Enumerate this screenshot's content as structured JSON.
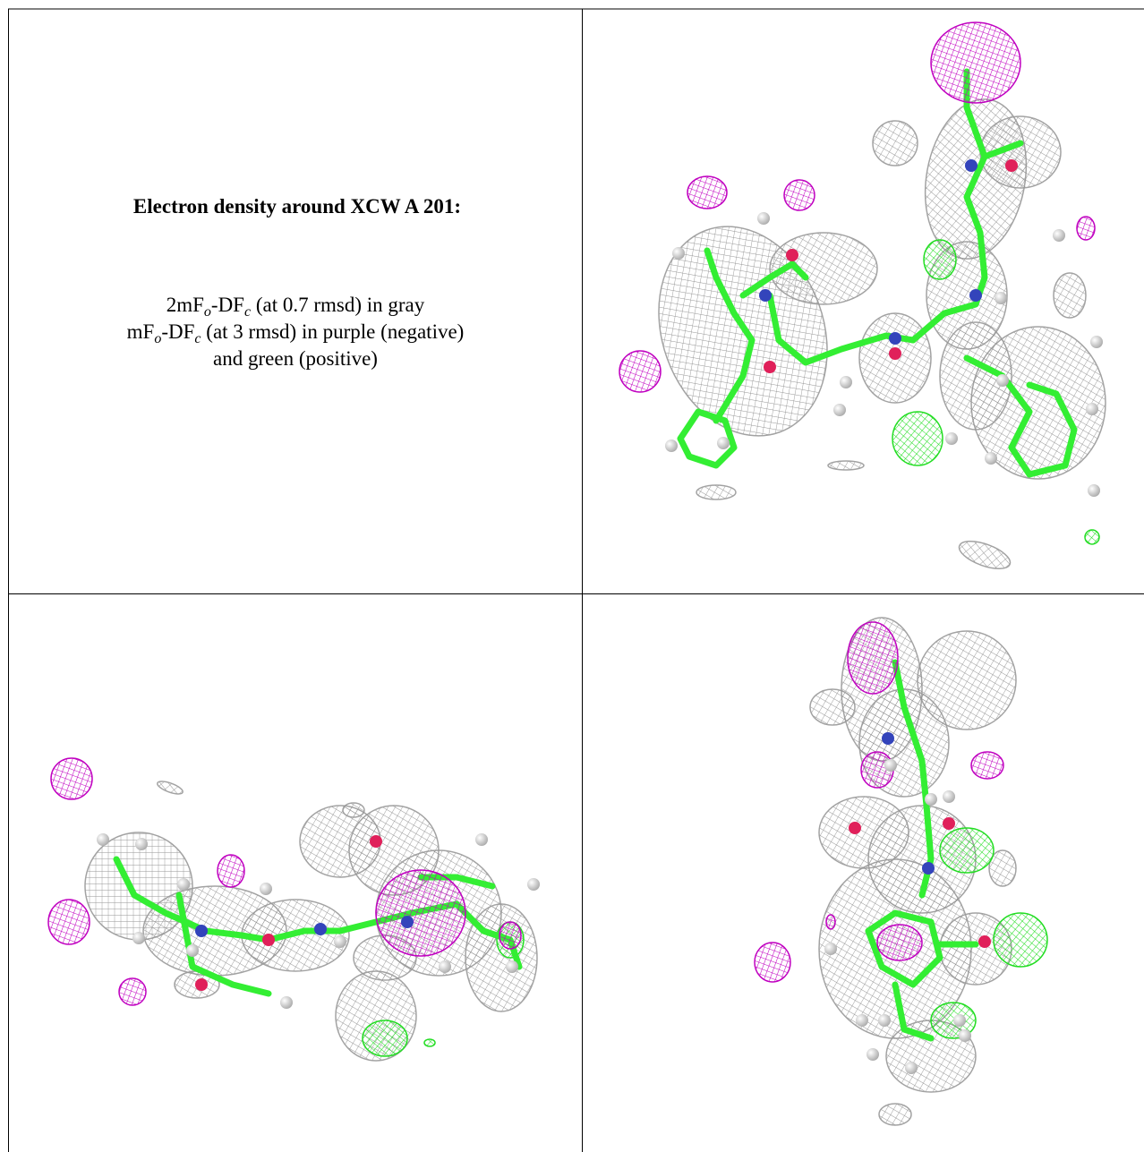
{
  "caption": {
    "title": "Electron density around XCW A 201:",
    "lines": [
      [
        {
          "text": "2mF"
        },
        {
          "sub": "o"
        },
        {
          "text": "-DF"
        },
        {
          "sub": "c"
        },
        {
          "text": " (at 0.7 rmsd) in gray"
        }
      ],
      [
        {
          "text": "mF"
        },
        {
          "sub": "o"
        },
        {
          "text": "-DF"
        },
        {
          "sub": "c"
        },
        {
          "text": " (at 3 rmsd) in purple (negative)"
        }
      ],
      [
        {
          "text": "and green (positive)"
        }
      ]
    ]
  }
}
